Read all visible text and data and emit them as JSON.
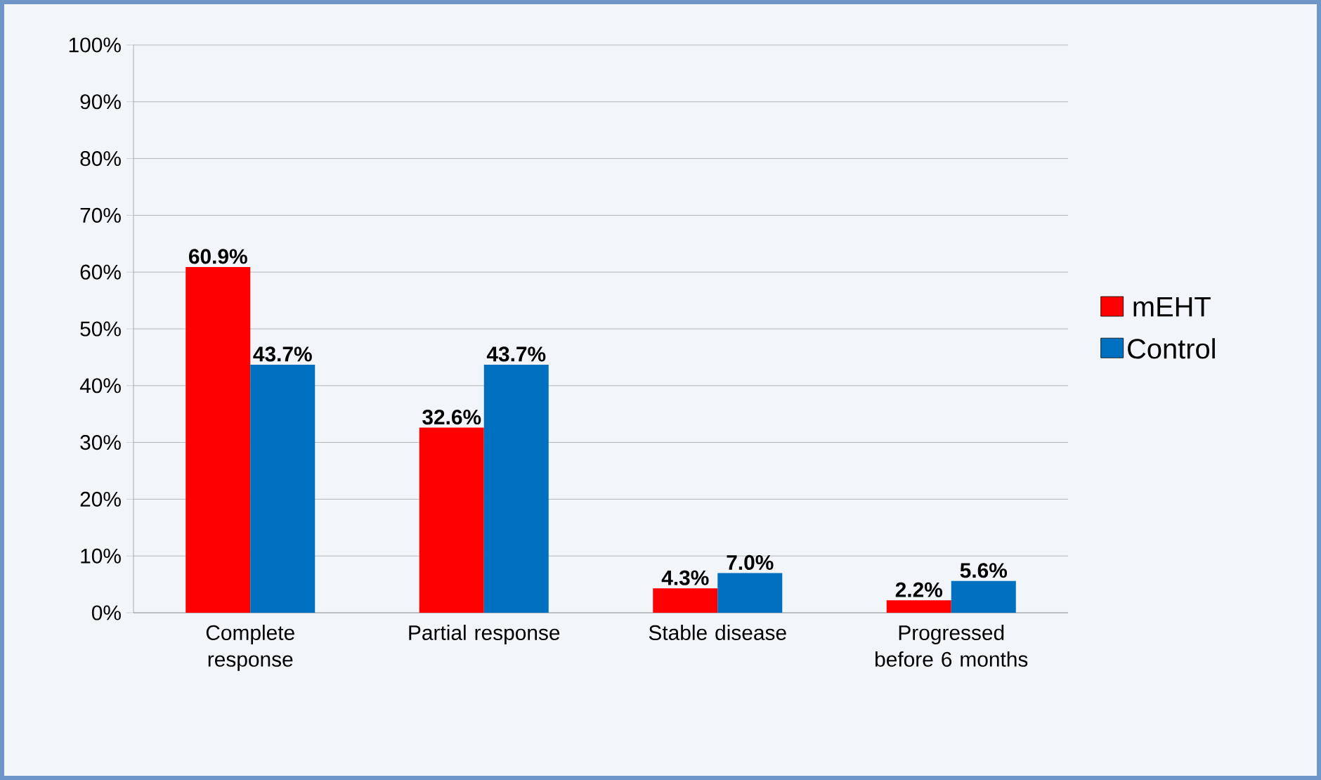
{
  "chart_data": {
    "type": "bar",
    "categories": [
      "Complete response",
      "Partial response",
      "Stable disease",
      "Progressed before 6 months"
    ],
    "series": [
      {
        "name": "mEHT",
        "color": "#ff0000",
        "values": [
          60.9,
          32.6,
          4.3,
          2.2
        ],
        "value_labels": [
          "60.9%",
          "32.6%",
          "4.3%",
          "2.2%"
        ]
      },
      {
        "name": "Control",
        "color": "#0070c0",
        "values": [
          43.7,
          43.7,
          7.0,
          5.6
        ],
        "value_labels": [
          "43.7%",
          "43.7%",
          "7.0%",
          "5.6%"
        ]
      }
    ],
    "ylim": [
      0,
      100
    ],
    "yticks": [
      {
        "value": 0,
        "label": "0%"
      },
      {
        "value": 10,
        "label": "10%"
      },
      {
        "value": 20,
        "label": "20%"
      },
      {
        "value": 30,
        "label": "30%"
      },
      {
        "value": 40,
        "label": "40%"
      },
      {
        "value": 50,
        "label": "50%"
      },
      {
        "value": 60,
        "label": "60%"
      },
      {
        "value": 70,
        "label": "70%"
      },
      {
        "value": 80,
        "label": "80%"
      },
      {
        "value": 90,
        "label": "90%"
      },
      {
        "value": 100,
        "label": "100%"
      }
    ],
    "grid": "y",
    "legend": "right"
  }
}
